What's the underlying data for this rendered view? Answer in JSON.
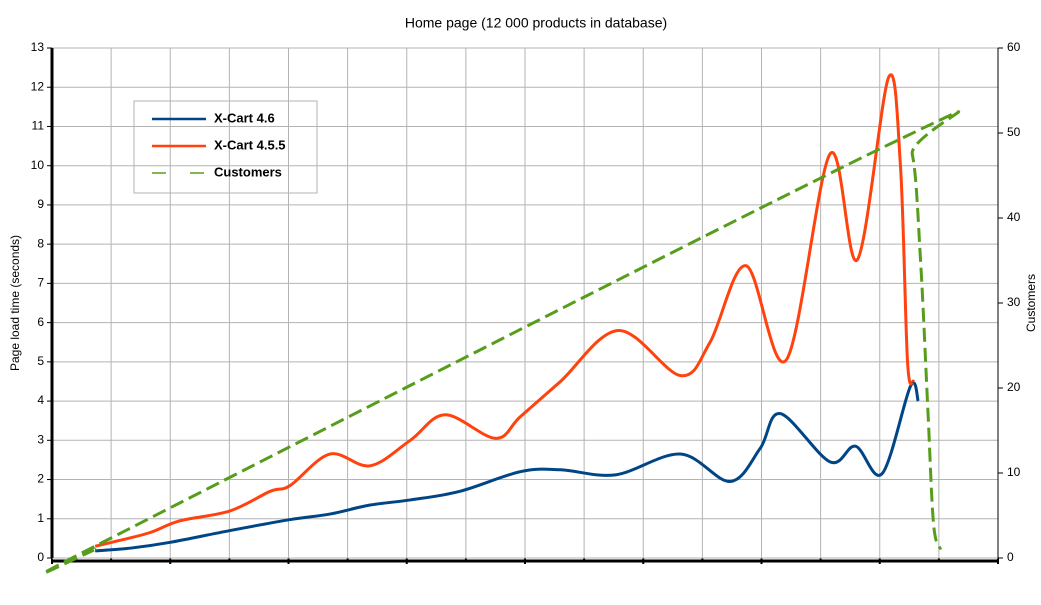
{
  "chart_data": {
    "type": "line",
    "title": "Home page (12 000 products in database)",
    "y_label": "Page load time (seconds)",
    "y2_label": "Customers",
    "xlim": [
      0,
      16
    ],
    "ylim": [
      0,
      13
    ],
    "yticks": [
      0,
      1,
      2,
      3,
      4,
      5,
      6,
      7,
      8,
      9,
      10,
      11,
      12,
      13
    ],
    "y2lim": [
      0,
      60
    ],
    "y2ticks": [
      0,
      10,
      20,
      30,
      40,
      50,
      60
    ],
    "grid": true,
    "legend": "upper left",
    "series": [
      {
        "name": "X-Cart 4.6",
        "color": "#004586",
        "style": "solid",
        "x": [
          0.73,
          1.32,
          2.0,
          3.01,
          4.03,
          4.7,
          5.38,
          6.06,
          6.9,
          7.92,
          8.6,
          9.53,
          10.63,
          11.47,
          11.98,
          12.32,
          13.16,
          13.59,
          14.04,
          14.52,
          14.65
        ],
        "values": [
          0.18,
          0.25,
          0.4,
          0.7,
          0.98,
          1.12,
          1.35,
          1.48,
          1.7,
          2.2,
          2.25,
          2.12,
          2.65,
          1.95,
          2.8,
          3.68,
          2.45,
          2.85,
          2.15,
          4.38,
          4.0
        ]
      },
      {
        "name": "X-Cart 4.5.5",
        "color": "#ff420e",
        "style": "solid",
        "x": [
          0.73,
          1.15,
          1.66,
          2.17,
          3.01,
          3.69,
          4.03,
          4.7,
          5.38,
          6.06,
          6.65,
          7.5,
          7.92,
          8.6,
          9.58,
          10.63,
          11.13,
          11.74,
          12.42,
          13.16,
          13.62,
          14.15,
          14.35,
          14.47,
          14.57
        ],
        "values": [
          0.3,
          0.45,
          0.65,
          0.95,
          1.2,
          1.7,
          1.85,
          2.65,
          2.35,
          3.0,
          3.65,
          3.05,
          3.6,
          4.5,
          5.8,
          4.65,
          5.5,
          7.45,
          5.05,
          10.3,
          7.6,
          12.25,
          10,
          5,
          4.5
        ]
      },
      {
        "name": "Customers",
        "color": "#579d1c",
        "style": "dashed",
        "axis": "y2",
        "x": [
          0.73,
          0.9,
          14.26,
          14.55,
          14.69,
          14.81,
          14.91,
          15.03
        ],
        "values": [
          1,
          2,
          49,
          47.5,
          35,
          18,
          4,
          1
        ]
      }
    ]
  }
}
